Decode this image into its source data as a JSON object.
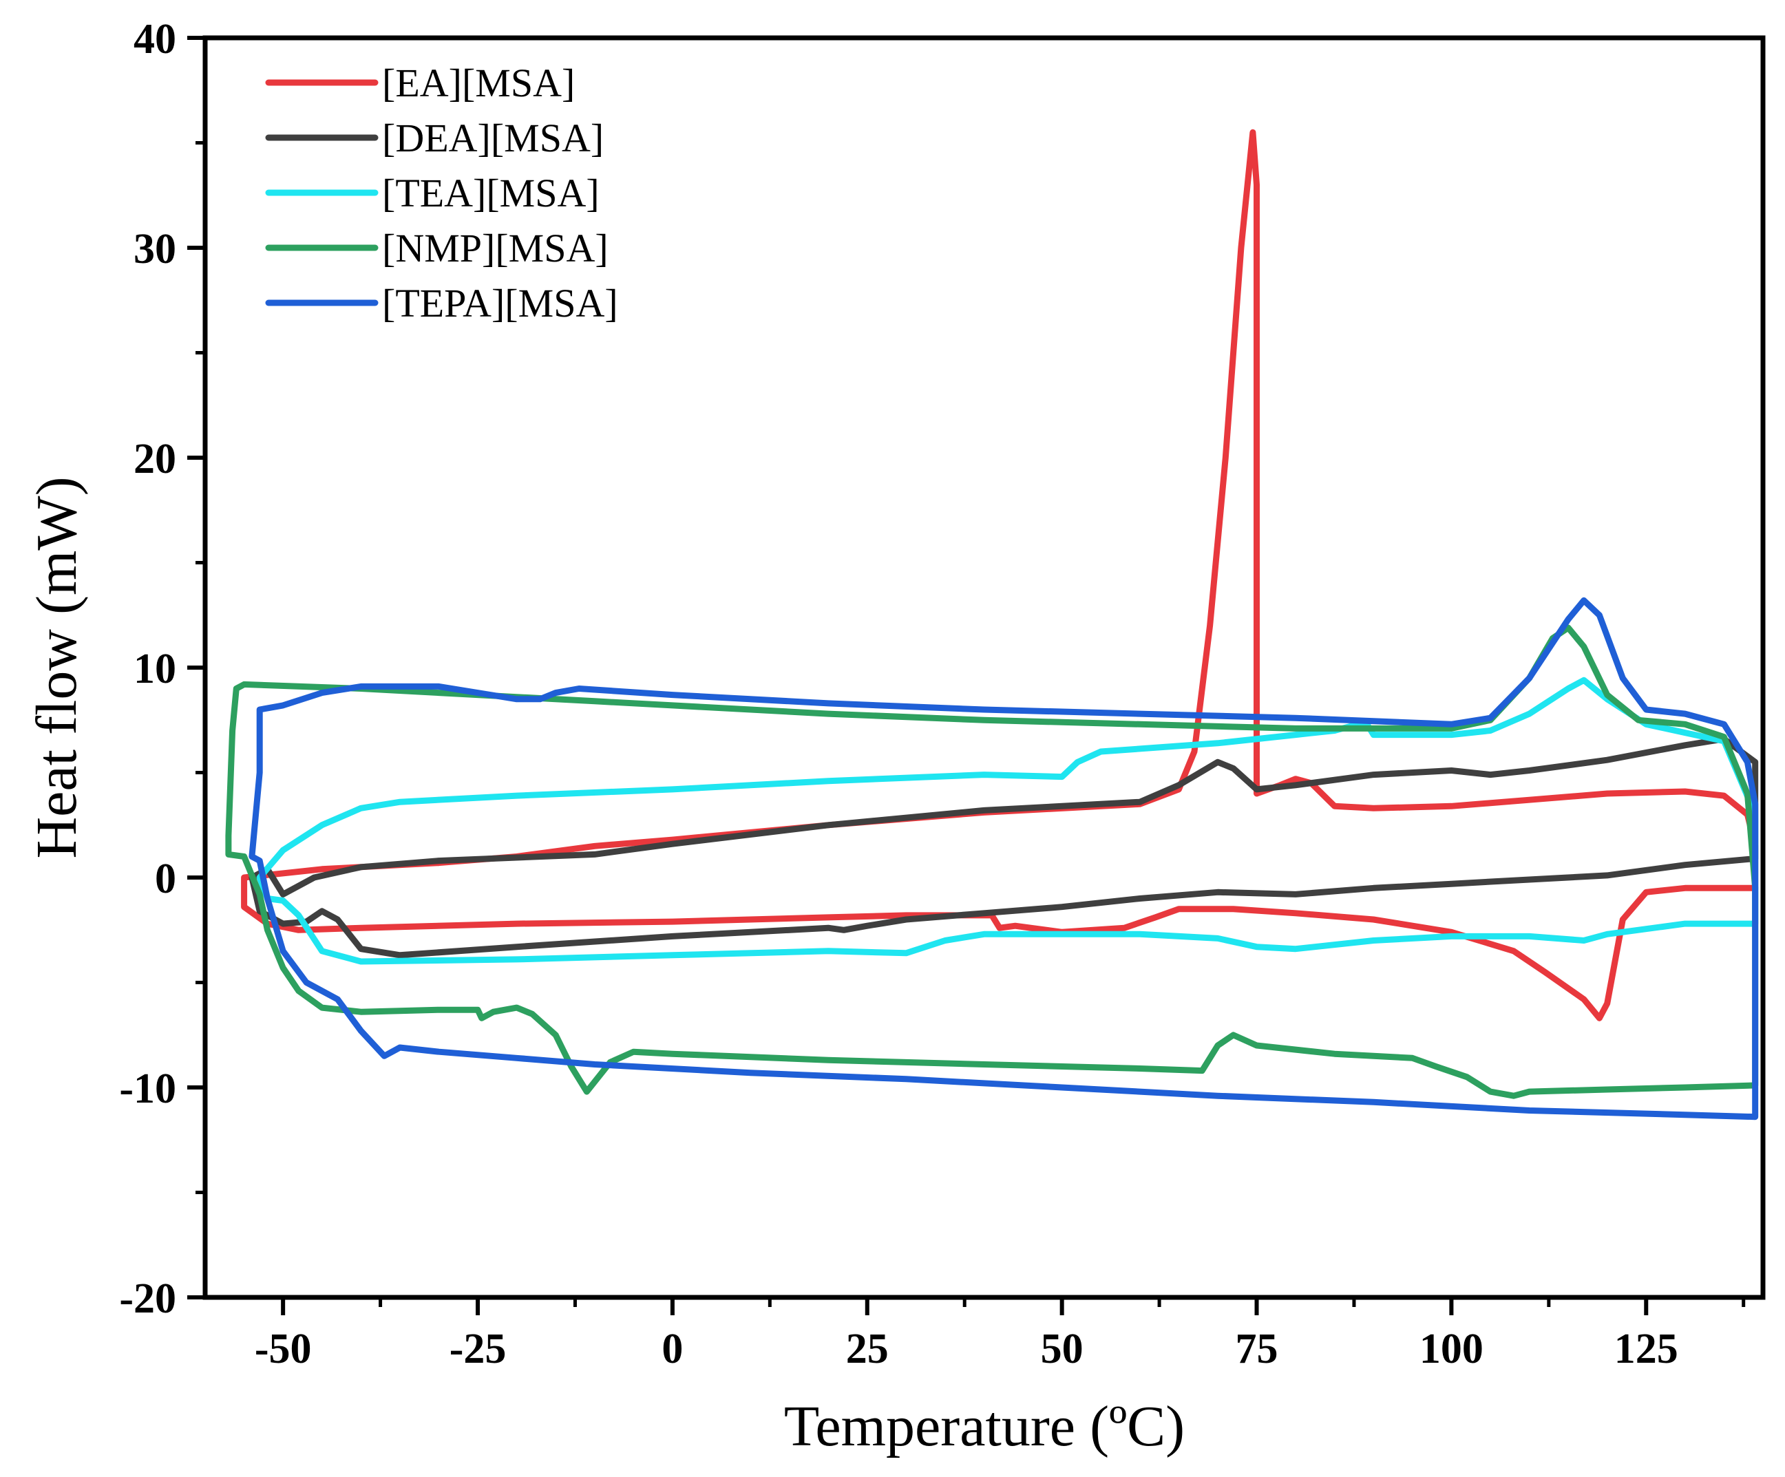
{
  "chart_data": {
    "type": "line",
    "title": "",
    "xlabel": "Temperature (ºC)",
    "ylabel": "Heat flow (mW)",
    "xlim": [
      -60,
      140
    ],
    "ylim": [
      -20,
      40
    ],
    "xticks": [
      -50,
      -25,
      0,
      25,
      50,
      75,
      100,
      125
    ],
    "xtick_labels": [
      "-50",
      "-25",
      "0",
      "25",
      "50",
      "75",
      "100",
      "125"
    ],
    "yticks": [
      -20,
      -10,
      0,
      10,
      20,
      30,
      40
    ],
    "ytick_labels": [
      "-20",
      "-10",
      "0",
      "10",
      "20",
      "30",
      "40"
    ],
    "grid": false,
    "legend_position": "top-left",
    "series": [
      {
        "name": "[EA][MSA]",
        "color": "#e8383d",
        "points": [
          [
            -55,
            -1.4
          ],
          [
            -55,
            0
          ],
          [
            -45,
            0.4
          ],
          [
            -30,
            0.7
          ],
          [
            -20,
            1.0
          ],
          [
            -10,
            1.5
          ],
          [
            0,
            1.8
          ],
          [
            20,
            2.5
          ],
          [
            40,
            3.1
          ],
          [
            60,
            3.5
          ],
          [
            65,
            4.2
          ],
          [
            67,
            6
          ],
          [
            69,
            12
          ],
          [
            71,
            20
          ],
          [
            73,
            30
          ],
          [
            74.5,
            35.5
          ],
          [
            75,
            33
          ],
          [
            75,
            4
          ],
          [
            78,
            4.4
          ],
          [
            80,
            4.7
          ],
          [
            82,
            4.5
          ],
          [
            85,
            3.4
          ],
          [
            90,
            3.3
          ],
          [
            100,
            3.4
          ],
          [
            110,
            3.7
          ],
          [
            120,
            4.0
          ],
          [
            130,
            4.1
          ],
          [
            135,
            3.9
          ],
          [
            138,
            3.0
          ],
          [
            139,
            1.5
          ],
          [
            139,
            -0.5
          ],
          [
            130,
            -0.5
          ],
          [
            125,
            -0.7
          ],
          [
            122,
            -2
          ],
          [
            120,
            -6
          ],
          [
            119,
            -6.7
          ],
          [
            117,
            -5.8
          ],
          [
            112,
            -4.5
          ],
          [
            108,
            -3.5
          ],
          [
            100,
            -2.6
          ],
          [
            90,
            -2.0
          ],
          [
            80,
            -1.7
          ],
          [
            72,
            -1.5
          ],
          [
            65,
            -1.5
          ],
          [
            62,
            -1.9
          ],
          [
            58,
            -2.4
          ],
          [
            50,
            -2.6
          ],
          [
            44,
            -2.3
          ],
          [
            42,
            -2.4
          ],
          [
            41,
            -1.8
          ],
          [
            30,
            -1.8
          ],
          [
            20,
            -1.9
          ],
          [
            0,
            -2.1
          ],
          [
            -20,
            -2.2
          ],
          [
            -40,
            -2.4
          ],
          [
            -48,
            -2.5
          ],
          [
            -52,
            -2.2
          ],
          [
            -55,
            -1.4
          ]
        ]
      },
      {
        "name": "[DEA][MSA]",
        "color": "#3f3f3f",
        "points": [
          [
            -50,
            -0.8
          ],
          [
            -46,
            0
          ],
          [
            -40,
            0.5
          ],
          [
            -30,
            0.8
          ],
          [
            -10,
            1.1
          ],
          [
            0,
            1.6
          ],
          [
            20,
            2.5
          ],
          [
            40,
            3.2
          ],
          [
            60,
            3.6
          ],
          [
            65,
            4.4
          ],
          [
            70,
            5.5
          ],
          [
            72,
            5.2
          ],
          [
            75,
            4.2
          ],
          [
            80,
            4.4
          ],
          [
            90,
            4.9
          ],
          [
            100,
            5.1
          ],
          [
            105,
            4.9
          ],
          [
            110,
            5.1
          ],
          [
            120,
            5.6
          ],
          [
            130,
            6.3
          ],
          [
            135,
            6.6
          ],
          [
            139,
            5.5
          ],
          [
            139,
            0.9
          ],
          [
            130,
            0.6
          ],
          [
            120,
            0.1
          ],
          [
            110,
            -0.1
          ],
          [
            100,
            -0.3
          ],
          [
            90,
            -0.5
          ],
          [
            80,
            -0.8
          ],
          [
            70,
            -0.7
          ],
          [
            60,
            -1.0
          ],
          [
            50,
            -1.4
          ],
          [
            40,
            -1.7
          ],
          [
            30,
            -2.0
          ],
          [
            25,
            -2.3
          ],
          [
            22,
            -2.5
          ],
          [
            20,
            -2.4
          ],
          [
            0,
            -2.8
          ],
          [
            -20,
            -3.3
          ],
          [
            -35,
            -3.7
          ],
          [
            -40,
            -3.4
          ],
          [
            -43,
            -2.0
          ],
          [
            -45,
            -1.6
          ],
          [
            -47,
            -2.1
          ],
          [
            -50,
            -2.2
          ],
          [
            -53,
            -1.6
          ],
          [
            -54,
            0
          ],
          [
            -52,
            0.4
          ],
          [
            -50,
            -0.8
          ]
        ]
      },
      {
        "name": "[TEA][MSA]",
        "color": "#1fe5f0",
        "points": [
          [
            -53,
            0
          ],
          [
            -50,
            1.3
          ],
          [
            -45,
            2.5
          ],
          [
            -40,
            3.3
          ],
          [
            -35,
            3.6
          ],
          [
            -20,
            3.9
          ],
          [
            0,
            4.2
          ],
          [
            20,
            4.6
          ],
          [
            40,
            4.9
          ],
          [
            50,
            4.8
          ],
          [
            52,
            5.5
          ],
          [
            55,
            6.0
          ],
          [
            70,
            6.4
          ],
          [
            80,
            6.8
          ],
          [
            85,
            7.0
          ],
          [
            88,
            7.3
          ],
          [
            89,
            7.4
          ],
          [
            90,
            6.8
          ],
          [
            95,
            6.8
          ],
          [
            100,
            6.8
          ],
          [
            105,
            7.0
          ],
          [
            110,
            7.8
          ],
          [
            115,
            9.0
          ],
          [
            117,
            9.4
          ],
          [
            120,
            8.5
          ],
          [
            125,
            7.3
          ],
          [
            130,
            6.9
          ],
          [
            135,
            6.5
          ],
          [
            139,
            3.0
          ],
          [
            139,
            -2.2
          ],
          [
            130,
            -2.2
          ],
          [
            120,
            -2.7
          ],
          [
            117,
            -3.0
          ],
          [
            110,
            -2.8
          ],
          [
            100,
            -2.8
          ],
          [
            90,
            -3.0
          ],
          [
            80,
            -3.4
          ],
          [
            75,
            -3.3
          ],
          [
            70,
            -2.9
          ],
          [
            60,
            -2.7
          ],
          [
            40,
            -2.7
          ],
          [
            35,
            -3.0
          ],
          [
            30,
            -3.6
          ],
          [
            20,
            -3.5
          ],
          [
            0,
            -3.7
          ],
          [
            -20,
            -3.9
          ],
          [
            -40,
            -4.0
          ],
          [
            -45,
            -3.5
          ],
          [
            -48,
            -1.8
          ],
          [
            -50,
            -1.1
          ],
          [
            -52,
            -1.0
          ],
          [
            -53,
            0
          ]
        ]
      },
      {
        "name": "[NMP][MSA]",
        "color": "#2da05f",
        "points": [
          [
            -57,
            2.0
          ],
          [
            -56.5,
            7
          ],
          [
            -56,
            9.0
          ],
          [
            -55,
            9.2
          ],
          [
            -40,
            9.0
          ],
          [
            -30,
            8.8
          ],
          [
            -20,
            8.6
          ],
          [
            -10,
            8.4
          ],
          [
            0,
            8.2
          ],
          [
            20,
            7.8
          ],
          [
            40,
            7.5
          ],
          [
            60,
            7.3
          ],
          [
            80,
            7.1
          ],
          [
            100,
            7.1
          ],
          [
            105,
            7.5
          ],
          [
            110,
            9.5
          ],
          [
            113,
            11.4
          ],
          [
            115,
            11.9
          ],
          [
            117,
            11.0
          ],
          [
            120,
            8.7
          ],
          [
            124,
            7.5
          ],
          [
            130,
            7.3
          ],
          [
            135,
            6.7
          ],
          [
            138,
            4
          ],
          [
            139,
            -0.5
          ],
          [
            139,
            -9.9
          ],
          [
            130,
            -10.0
          ],
          [
            120,
            -10.1
          ],
          [
            110,
            -10.2
          ],
          [
            108,
            -10.4
          ],
          [
            105,
            -10.2
          ],
          [
            102,
            -9.5
          ],
          [
            98,
            -9.0
          ],
          [
            95,
            -8.6
          ],
          [
            90,
            -8.5
          ],
          [
            85,
            -8.4
          ],
          [
            75,
            -8.0
          ],
          [
            72,
            -7.5
          ],
          [
            70,
            -8.0
          ],
          [
            68,
            -9.2
          ],
          [
            60,
            -9.1
          ],
          [
            40,
            -8.9
          ],
          [
            20,
            -8.7
          ],
          [
            0,
            -8.4
          ],
          [
            -5,
            -8.3
          ],
          [
            -8,
            -8.8
          ],
          [
            -11,
            -10.2
          ],
          [
            -13,
            -9.0
          ],
          [
            -15,
            -7.5
          ],
          [
            -18,
            -6.5
          ],
          [
            -20,
            -6.2
          ],
          [
            -23,
            -6.4
          ],
          [
            -24.5,
            -6.7
          ],
          [
            -25,
            -6.3
          ],
          [
            -30,
            -6.3
          ],
          [
            -40,
            -6.4
          ],
          [
            -45,
            -6.2
          ],
          [
            -48,
            -5.4
          ],
          [
            -50,
            -4.3
          ],
          [
            -52,
            -2.5
          ],
          [
            -53,
            -0.8
          ],
          [
            -55,
            1.0
          ],
          [
            -57,
            1.1
          ],
          [
            -57,
            2.0
          ]
        ]
      },
      {
        "name": "[TEPA][MSA]",
        "color": "#1f5fd6",
        "points": [
          [
            -54,
            1.0
          ],
          [
            -53,
            5
          ],
          [
            -53,
            8.0
          ],
          [
            -50,
            8.2
          ],
          [
            -45,
            8.8
          ],
          [
            -40,
            9.1
          ],
          [
            -30,
            9.1
          ],
          [
            -20,
            8.5
          ],
          [
            -17,
            8.5
          ],
          [
            -15,
            8.8
          ],
          [
            -12,
            9.0
          ],
          [
            0,
            8.7
          ],
          [
            20,
            8.3
          ],
          [
            40,
            8.0
          ],
          [
            60,
            7.8
          ],
          [
            80,
            7.6
          ],
          [
            100,
            7.3
          ],
          [
            105,
            7.6
          ],
          [
            110,
            9.5
          ],
          [
            115,
            12.3
          ],
          [
            117,
            13.2
          ],
          [
            119,
            12.5
          ],
          [
            122,
            9.5
          ],
          [
            125,
            8.0
          ],
          [
            130,
            7.8
          ],
          [
            135,
            7.3
          ],
          [
            138,
            5.5
          ],
          [
            139,
            3.5
          ],
          [
            139,
            -11.4
          ],
          [
            130,
            -11.3
          ],
          [
            110,
            -11.1
          ],
          [
            90,
            -10.7
          ],
          [
            70,
            -10.4
          ],
          [
            50,
            -10.0
          ],
          [
            30,
            -9.6
          ],
          [
            10,
            -9.3
          ],
          [
            -10,
            -8.9
          ],
          [
            -20,
            -8.6
          ],
          [
            -30,
            -8.3
          ],
          [
            -35,
            -8.1
          ],
          [
            -37,
            -8.5
          ],
          [
            -40,
            -7.3
          ],
          [
            -43,
            -5.8
          ],
          [
            -47,
            -5.0
          ],
          [
            -50,
            -3.5
          ],
          [
            -52,
            -1.0
          ],
          [
            -53,
            0.8
          ],
          [
            -54,
            1.0
          ]
        ]
      }
    ]
  }
}
